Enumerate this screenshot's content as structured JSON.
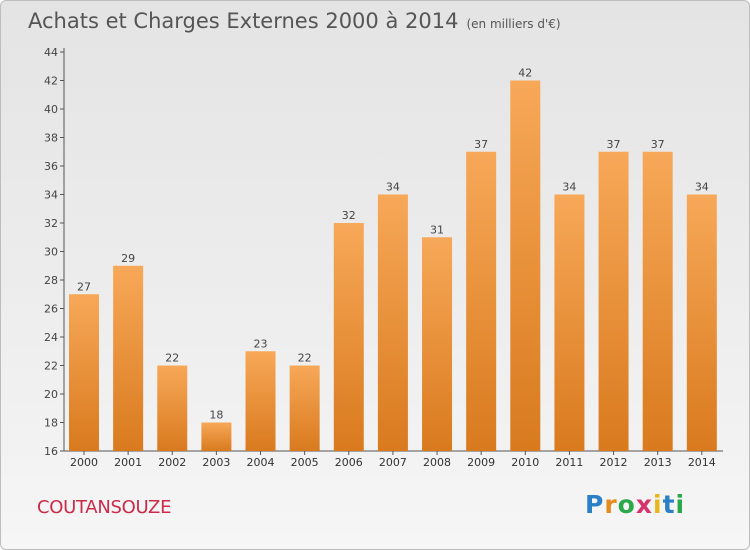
{
  "title": "Achats et Charges Externes 2000 à 2014",
  "unit": "(en milliers d'€)",
  "commune": "COUTANSOUZE",
  "logo": {
    "text": "Proxiti",
    "letters": [
      "P",
      "r",
      "o",
      "x",
      "i",
      "t",
      "i"
    ],
    "colors": [
      "#2a7fc7",
      "#e68a1c",
      "#2aa84a",
      "#d6336c",
      "#e6b81c",
      "#2a7fc7",
      "#2aa84a"
    ]
  },
  "colors": {
    "bar_light": "#f7a858",
    "bar_dark": "#d97a1e",
    "axis": "#555555"
  },
  "chart_data": {
    "type": "bar",
    "title": "Achats et Charges Externes 2000 à 2014",
    "ylabel": "en milliers d'€",
    "categories": [
      "2000",
      "2001",
      "2002",
      "2003",
      "2004",
      "2005",
      "2006",
      "2007",
      "2008",
      "2009",
      "2010",
      "2011",
      "2012",
      "2013",
      "2014"
    ],
    "values": [
      27,
      29,
      22,
      18,
      23,
      22,
      32,
      34,
      31,
      37,
      42,
      34,
      37,
      37,
      34
    ],
    "ylim": [
      16,
      44
    ],
    "yticks": [
      16,
      18,
      20,
      22,
      24,
      26,
      28,
      30,
      32,
      34,
      36,
      38,
      40,
      42,
      44
    ],
    "grid": false
  }
}
